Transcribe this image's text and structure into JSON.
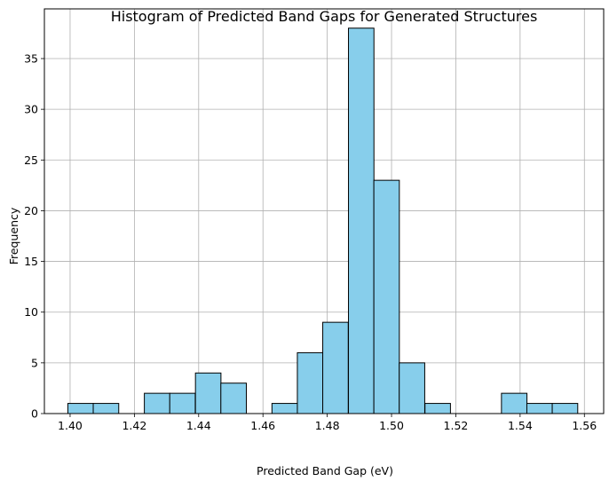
{
  "chart_data": {
    "type": "bar",
    "title": "Histogram of Predicted Band Gaps for Generated Structures",
    "xlabel": "Predicted Band Gap (eV)",
    "ylabel": "Frequency",
    "xlim": [
      1.392,
      1.566
    ],
    "ylim": [
      0,
      39.9
    ],
    "grid": true,
    "bar_color": "#87ceeb",
    "edge_color": "#000000",
    "bin_width": 0.00793,
    "bins": [
      {
        "start": 1.3993,
        "count": 1
      },
      {
        "start": 1.4072,
        "count": 1
      },
      {
        "start": 1.4152,
        "count": 0
      },
      {
        "start": 1.4231,
        "count": 2
      },
      {
        "start": 1.431,
        "count": 2
      },
      {
        "start": 1.439,
        "count": 4
      },
      {
        "start": 1.4469,
        "count": 3
      },
      {
        "start": 1.4548,
        "count": 0
      },
      {
        "start": 1.4628,
        "count": 1
      },
      {
        "start": 1.4707,
        "count": 6
      },
      {
        "start": 1.4786,
        "count": 9
      },
      {
        "start": 1.4866,
        "count": 38
      },
      {
        "start": 1.4945,
        "count": 23
      },
      {
        "start": 1.5024,
        "count": 5
      },
      {
        "start": 1.5104,
        "count": 1
      },
      {
        "start": 1.5183,
        "count": 0
      },
      {
        "start": 1.5262,
        "count": 0
      },
      {
        "start": 1.5342,
        "count": 2
      },
      {
        "start": 1.5421,
        "count": 1
      },
      {
        "start": 1.55,
        "count": 1
      }
    ],
    "x_ticks": [
      1.4,
      1.42,
      1.44,
      1.46,
      1.48,
      1.5,
      1.52,
      1.54,
      1.56
    ],
    "x_tick_labels": [
      "1.40",
      "1.42",
      "1.44",
      "1.46",
      "1.48",
      "1.50",
      "1.52",
      "1.54",
      "1.56"
    ],
    "y_ticks": [
      0,
      5,
      10,
      15,
      20,
      25,
      30,
      35
    ],
    "y_tick_labels": [
      "0",
      "5",
      "10",
      "15",
      "20",
      "25",
      "30",
      "35"
    ]
  }
}
